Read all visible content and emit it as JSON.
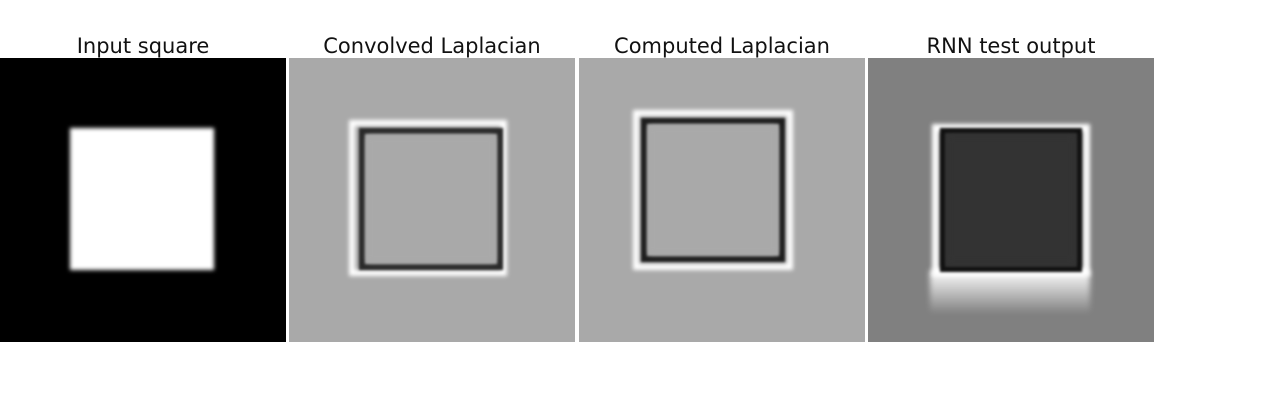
{
  "panels": [
    {
      "title": "Input square",
      "bg": "#000000",
      "square": "#ffffff"
    },
    {
      "title": "Convolved Laplacian",
      "bg": "#a9a9a9",
      "square": "#a9a9a9"
    },
    {
      "title": "Computed Laplacian",
      "bg": "#a9a9a9",
      "square": "#a9a9a9"
    },
    {
      "title": "RNN test output",
      "bg": "#808080",
      "square": "#333333"
    }
  ]
}
